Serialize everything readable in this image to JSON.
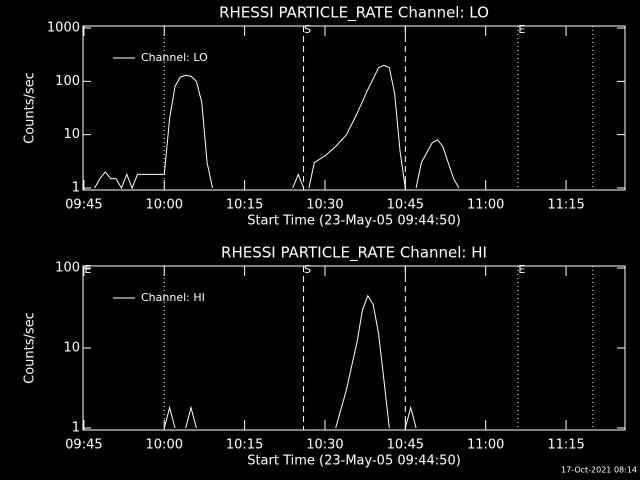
{
  "chart_data": [
    {
      "type": "line",
      "title": "RHESSI PARTICLE_RATE Channel: LO",
      "xlabel": "Start Time (23-May-05 09:44:50)",
      "ylabel": "Counts/sec",
      "log_y": true,
      "xlim": [
        "09:44:50",
        "11:26"
      ],
      "ylim": [
        1,
        1000
      ],
      "xticks": [
        "09:45",
        "10:00",
        "10:15",
        "10:30",
        "10:45",
        "11:00",
        "11:15"
      ],
      "yticks": [
        1,
        10,
        100,
        1000
      ],
      "x": [
        "09:47",
        "09:48",
        "09:49",
        "09:50",
        "09:51",
        "09:52",
        "09:53",
        "09:54",
        "09:55",
        "09:58",
        "10:00",
        "10:01",
        "10:02",
        "10:03",
        "10:04",
        "10:05",
        "10:06",
        "10:07",
        "10:08",
        "10:09",
        "10:10",
        "10:24",
        "10:25",
        "10:26",
        "10:26:30",
        "10:27",
        "10:28",
        "10:30",
        "10:32",
        "10:34",
        "10:36",
        "10:38",
        "10:40",
        "10:41",
        "10:42",
        "10:43",
        "10:44",
        "10:45",
        "10:46",
        "10:47",
        "10:48",
        "10:50",
        "10:51",
        "10:52",
        "10:53",
        "10:54",
        "10:55"
      ],
      "series": [
        {
          "name": "Channel: LO",
          "color": "#ffffff",
          "values": [
            1,
            1.5,
            2,
            1.5,
            1.5,
            1,
            1.8,
            1,
            1.8,
            1.8,
            1.8,
            20,
            80,
            120,
            130,
            125,
            100,
            40,
            3,
            1,
            null,
            1,
            1.8,
            1,
            null,
            1,
            3,
            4,
            6,
            10,
            25,
            70,
            180,
            200,
            180,
            60,
            5,
            1,
            null,
            1,
            3,
            7,
            8,
            6,
            3,
            1.5,
            1
          ]
        }
      ],
      "markers": [
        {
          "x": "10:00",
          "style": "dotted"
        },
        {
          "x": "10:26",
          "style": "dashed",
          "label": "S"
        },
        {
          "x": "10:45",
          "style": "dashed"
        },
        {
          "x": "11:06",
          "style": "dotted",
          "label": "E"
        },
        {
          "x": "11:20",
          "style": "dotted"
        }
      ]
    },
    {
      "type": "line",
      "title": "RHESSI PARTICLE_RATE Channel: HI",
      "xlabel": "Start Time (23-May-05 09:44:50)",
      "ylabel": "Counts/sec",
      "log_y": true,
      "xlim": [
        "09:44:50",
        "11:26"
      ],
      "ylim": [
        1,
        100
      ],
      "xticks": [
        "09:45",
        "10:00",
        "10:15",
        "10:30",
        "10:45",
        "11:00",
        "11:15"
      ],
      "yticks": [
        1,
        10,
        100
      ],
      "x": [
        "10:00",
        "10:01",
        "10:02",
        "10:03",
        "10:04",
        "10:05",
        "10:06",
        "10:20",
        "10:32",
        "10:34",
        "10:36",
        "10:37",
        "10:38",
        "10:39",
        "10:40",
        "10:41",
        "10:42",
        "10:43",
        "10:45",
        "10:46",
        "10:47"
      ],
      "series": [
        {
          "name": "Channel: HI",
          "color": "#ffffff",
          "values": [
            1,
            1.8,
            1,
            null,
            1,
            1.8,
            1,
            null,
            1,
            3,
            12,
            30,
            45,
            35,
            15,
            4,
            1,
            null,
            1,
            1.8,
            1
          ]
        }
      ],
      "markers": [
        {
          "x": "09:45",
          "style": "none",
          "label": "E"
        },
        {
          "x": "10:00",
          "style": "dotted"
        },
        {
          "x": "10:26",
          "style": "dashed",
          "label": "S"
        },
        {
          "x": "10:45",
          "style": "dashed"
        },
        {
          "x": "11:06",
          "style": "dotted",
          "label": "E"
        },
        {
          "x": "11:20",
          "style": "dotted"
        }
      ]
    }
  ],
  "footer": "17-Oct-2021 08:14"
}
